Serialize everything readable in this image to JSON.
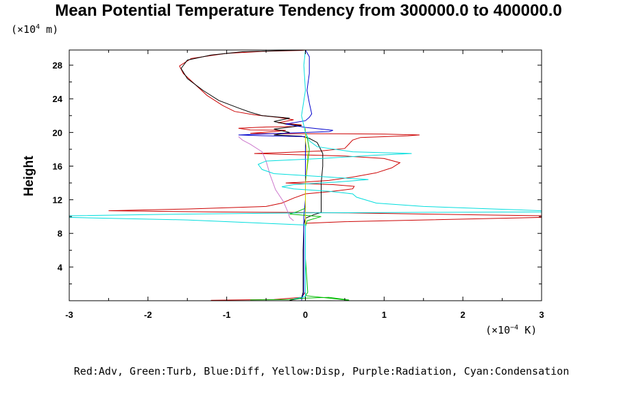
{
  "chart_data": {
    "type": "line",
    "title": "Mean Potential Temperature Tendency from 300000.0 to 400000.0",
    "ylabel": "Height",
    "yunit_prefix": "(×10",
    "yunit_exp": "4",
    "yunit_suffix": " m)",
    "xunit_prefix": "(×10",
    "xunit_exp": "−4",
    "xunit_suffix": " K)",
    "xlim": [
      -3,
      3
    ],
    "ylim": [
      0,
      29.8
    ],
    "xticks": [
      -3,
      -2,
      -1,
      0,
      1,
      2,
      3
    ],
    "yticks": [
      4,
      8,
      12,
      16,
      20,
      24,
      28
    ],
    "legend_text": "Red:Adv, Green:Turb, Blue:Diff, Yellow:Disp, Purple:Radiation, Cyan:Condensation",
    "series": [
      {
        "color": "#cc0000",
        "points": [
          [
            -1.2,
            0.05
          ],
          [
            -0.4,
            0.15
          ],
          [
            -0.05,
            0.4
          ],
          [
            0.0,
            1.0
          ],
          [
            0.0,
            8.0
          ],
          [
            0.0,
            9.2
          ],
          [
            0.5,
            9.4
          ],
          [
            1.5,
            9.6
          ],
          [
            2.5,
            9.8
          ],
          [
            3.0,
            9.9
          ],
          [
            3.0,
            10.1
          ],
          [
            1.5,
            10.3
          ],
          [
            0.5,
            10.45
          ],
          [
            -0.3,
            10.5
          ],
          [
            -1.2,
            10.55
          ],
          [
            -2.5,
            10.7
          ],
          [
            -1.5,
            10.9
          ],
          [
            -0.5,
            11.2
          ],
          [
            -0.3,
            11.6
          ],
          [
            -0.15,
            12.2
          ],
          [
            0.0,
            12.7
          ],
          [
            0.3,
            12.95
          ],
          [
            0.6,
            13.3
          ],
          [
            0.62,
            13.6
          ],
          [
            0.35,
            13.8
          ],
          [
            0.0,
            13.9
          ],
          [
            -0.25,
            14.0
          ],
          [
            0.0,
            14.1
          ],
          [
            0.3,
            14.3
          ],
          [
            0.6,
            14.7
          ],
          [
            0.9,
            15.2
          ],
          [
            1.1,
            15.8
          ],
          [
            1.2,
            16.4
          ],
          [
            1.0,
            16.9
          ],
          [
            0.5,
            17.2
          ],
          [
            -0.3,
            17.4
          ],
          [
            -0.65,
            17.5
          ],
          [
            -0.3,
            17.6
          ],
          [
            0.2,
            17.8
          ],
          [
            0.5,
            18.1
          ],
          [
            0.55,
            18.6
          ],
          [
            0.6,
            19.1
          ],
          [
            0.7,
            19.4
          ],
          [
            1.3,
            19.6
          ],
          [
            1.45,
            19.7
          ],
          [
            1.0,
            19.8
          ],
          [
            0.3,
            19.85
          ],
          [
            -0.4,
            19.85
          ],
          [
            -0.7,
            19.9
          ],
          [
            -0.4,
            20.1
          ],
          [
            -0.25,
            20.25
          ],
          [
            -0.7,
            20.3
          ],
          [
            -0.85,
            20.5
          ],
          [
            -0.5,
            20.65
          ],
          [
            -0.15,
            20.7
          ],
          [
            -0.05,
            20.9
          ],
          [
            -0.35,
            21.15
          ],
          [
            -0.15,
            21.5
          ],
          [
            -0.35,
            21.8
          ],
          [
            -0.65,
            22.1
          ],
          [
            -0.9,
            22.5
          ],
          [
            -1.05,
            23.2
          ],
          [
            -1.25,
            24.4
          ],
          [
            -1.4,
            25.7
          ],
          [
            -1.55,
            27.0
          ],
          [
            -1.6,
            27.9
          ],
          [
            -1.45,
            28.8
          ],
          [
            -1.0,
            29.4
          ],
          [
            -0.5,
            29.65
          ],
          [
            -0.05,
            29.75
          ],
          [
            0.0,
            29.8
          ]
        ]
      },
      {
        "color": "#000000",
        "points": [
          [
            -0.2,
            0.05
          ],
          [
            -0.05,
            0.3
          ],
          [
            -0.03,
            1.0
          ],
          [
            -0.03,
            6.0
          ],
          [
            -0.02,
            9.0
          ],
          [
            0.0,
            9.8
          ],
          [
            0.1,
            10.2
          ],
          [
            0.2,
            10.5
          ],
          [
            0.2,
            12.0
          ],
          [
            0.2,
            14.0
          ],
          [
            0.22,
            16.0
          ],
          [
            0.22,
            17.5
          ],
          [
            0.15,
            18.8
          ],
          [
            0.05,
            19.3
          ],
          [
            -0.05,
            19.55
          ],
          [
            -0.4,
            19.7
          ],
          [
            -0.2,
            20.0
          ],
          [
            -0.4,
            20.4
          ],
          [
            -0.05,
            20.8
          ],
          [
            -0.25,
            21.0
          ],
          [
            -0.4,
            21.3
          ],
          [
            -0.2,
            21.7
          ],
          [
            -0.55,
            22.0
          ],
          [
            -0.7,
            22.4
          ],
          [
            -0.85,
            22.9
          ],
          [
            -1.1,
            23.8
          ],
          [
            -1.3,
            25.0
          ],
          [
            -1.5,
            26.4
          ],
          [
            -1.58,
            27.6
          ],
          [
            -1.5,
            28.6
          ],
          [
            -1.2,
            29.2
          ],
          [
            -0.8,
            29.6
          ],
          [
            -0.2,
            29.75
          ],
          [
            0.0,
            29.8
          ]
        ]
      },
      {
        "color": "#0000cc",
        "points": [
          [
            -0.05,
            0.05
          ],
          [
            -0.02,
            1.0
          ],
          [
            -0.02,
            10.0
          ],
          [
            0.0,
            12.0
          ],
          [
            0.0,
            15.0
          ],
          [
            0.0,
            18.0
          ],
          [
            0.0,
            19.5
          ],
          [
            -0.5,
            19.6
          ],
          [
            -0.85,
            19.7
          ],
          [
            -0.3,
            19.9
          ],
          [
            0.3,
            20.1
          ],
          [
            0.35,
            20.25
          ],
          [
            0.0,
            20.6
          ],
          [
            -0.25,
            21.0
          ],
          [
            0.0,
            21.4
          ],
          [
            0.05,
            21.8
          ],
          [
            0.08,
            22.2
          ],
          [
            0.05,
            23.5
          ],
          [
            0.02,
            25.0
          ],
          [
            0.05,
            27.0
          ],
          [
            0.05,
            29.0
          ],
          [
            0.0,
            29.8
          ]
        ]
      },
      {
        "color": "#00bb00",
        "points": [
          [
            -0.7,
            0.1
          ],
          [
            -0.2,
            0.15
          ],
          [
            0.0,
            0.3
          ],
          [
            0.3,
            0.4
          ],
          [
            0.55,
            0.1
          ],
          [
            0.55,
            0.05
          ],
          [
            0.0,
            0.6
          ],
          [
            0.03,
            1.0
          ],
          [
            0.0,
            5.0
          ],
          [
            0.0,
            8.8
          ],
          [
            0.02,
            9.5
          ],
          [
            0.2,
            10.0
          ],
          [
            -0.2,
            10.3
          ],
          [
            -0.1,
            10.6
          ],
          [
            0.0,
            11.0
          ],
          [
            0.0,
            14.0
          ],
          [
            0.05,
            18.0
          ],
          [
            0.02,
            19.5
          ],
          [
            0.0,
            20.0
          ]
        ]
      },
      {
        "color": "#cccc00",
        "points": [
          [
            0.0,
            0.5
          ],
          [
            0.0,
            5.0
          ],
          [
            0.0,
            9.0
          ],
          [
            0.0,
            10.5
          ],
          [
            0.0,
            14.0
          ],
          [
            0.03,
            17.0
          ],
          [
            0.0,
            19.0
          ],
          [
            0.0,
            20.5
          ]
        ]
      },
      {
        "color": "#cc77cc",
        "points": [
          [
            -0.15,
            9.5
          ],
          [
            -0.2,
            9.9
          ],
          [
            -0.22,
            10.5
          ],
          [
            -0.28,
            11.8
          ],
          [
            -0.38,
            13.2
          ],
          [
            -0.45,
            15.0
          ],
          [
            -0.5,
            16.6
          ],
          [
            -0.55,
            17.7
          ],
          [
            -0.7,
            18.6
          ],
          [
            -0.8,
            19.1
          ],
          [
            -0.85,
            19.5
          ]
        ]
      },
      {
        "color": "#00dddd",
        "points": [
          [
            -0.15,
            0.2
          ],
          [
            0.0,
            0.5
          ],
          [
            0.0,
            5.0
          ],
          [
            0.0,
            9.0
          ],
          [
            -1.5,
            9.6
          ],
          [
            -3.0,
            9.9
          ],
          [
            -3.0,
            10.1
          ],
          [
            -1.5,
            10.3
          ],
          [
            0.0,
            10.45
          ],
          [
            1.5,
            10.5
          ],
          [
            3.0,
            10.55
          ],
          [
            3.0,
            10.7
          ],
          [
            1.5,
            11.2
          ],
          [
            0.9,
            11.6
          ],
          [
            0.65,
            12.3
          ],
          [
            0.6,
            12.7
          ],
          [
            0.3,
            13.0
          ],
          [
            -0.15,
            13.3
          ],
          [
            -0.3,
            13.55
          ],
          [
            -0.15,
            13.8
          ],
          [
            0.4,
            14.1
          ],
          [
            0.8,
            14.4
          ],
          [
            0.3,
            14.7
          ],
          [
            -0.4,
            15.1
          ],
          [
            -0.55,
            15.6
          ],
          [
            -0.6,
            16.2
          ],
          [
            -0.5,
            16.6
          ],
          [
            0.2,
            16.9
          ],
          [
            0.9,
            17.3
          ],
          [
            1.35,
            17.5
          ],
          [
            0.6,
            17.7
          ],
          [
            0.15,
            18.3
          ],
          [
            0.05,
            19.0
          ],
          [
            0.0,
            20.0
          ],
          [
            -0.05,
            22.0
          ],
          [
            0.0,
            25.0
          ],
          [
            -0.02,
            28.0
          ],
          [
            0.0,
            29.8
          ]
        ]
      }
    ]
  }
}
